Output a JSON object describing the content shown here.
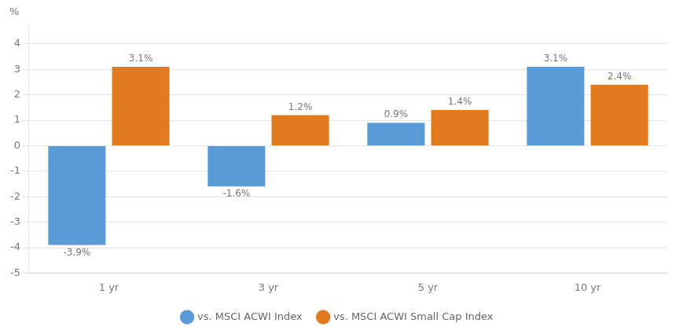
{
  "chart_data": {
    "type": "bar",
    "categories": [
      "1 yr",
      "3 yr",
      "5 yr",
      "10 yr"
    ],
    "series": [
      {
        "name": "vs. MSCI ACWI Index",
        "color": "#5B9BD5",
        "values": [
          -3.9,
          -1.6,
          0.9,
          3.1
        ],
        "value_labels": [
          "-3.9%",
          "-1.6%",
          "0.9%",
          "3.1%"
        ]
      },
      {
        "name": "vs. MSCI ACWI Small Cap Index",
        "color": "#E07B20",
        "values": [
          3.1,
          1.2,
          1.4,
          2.4
        ],
        "value_labels": [
          "3.1%",
          "1.2%",
          "1.4%",
          "2.4%"
        ]
      }
    ],
    "ylim": [
      -5,
      4.8
    ],
    "yticks": [
      -5,
      -4,
      -3,
      -2,
      -1,
      0,
      1,
      2,
      3,
      4
    ],
    "grid": true,
    "legend": "bottom",
    "data_labels": true,
    "annotations": [
      "%"
    ]
  }
}
